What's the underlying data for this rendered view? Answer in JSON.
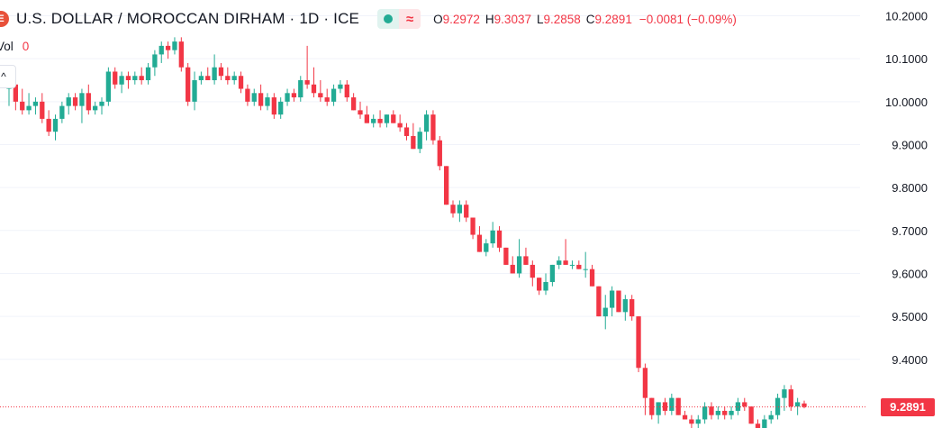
{
  "legend": {
    "symbol_icon": "E",
    "title": "U.S. DOLLAR / MOROCCAN DIRHAM · 1D · ICE",
    "market_status_icon": "market-open-dot-icon",
    "data_status_icon": "delayed-data-wave-icon",
    "data_status_glyph": "≈",
    "open_key": "O",
    "open_value": "9.2972",
    "high_key": "H",
    "high_value": "9.3037",
    "low_key": "L",
    "low_value": "9.2858",
    "close_key": "C",
    "close_value": "9.2891",
    "change_text": "−0.0081 (−0.09%)",
    "vol_label": "Vol",
    "vol_value": "0",
    "collapse_glyph": "^"
  },
  "colors": {
    "up": "#22ab94",
    "down": "#f23645",
    "text": "#131722",
    "grid": "#f0f3fa",
    "axis_text": "#131722"
  },
  "chart_data": {
    "type": "candlestick",
    "y_axis": {
      "min": 9.24,
      "max": 10.22,
      "ticks": [
        10.2,
        10.1,
        10.0,
        9.9,
        9.8,
        9.7,
        9.6,
        9.5,
        9.4
      ],
      "tick_labels": [
        "10.2000",
        "10.1000",
        "10.0000",
        "9.9000",
        "9.8000",
        "9.7000",
        "9.6000",
        "9.5000",
        "9.4000"
      ],
      "side": "right"
    },
    "current_price": 9.2891,
    "current_price_label": "9.2891",
    "candles": [
      [
        10.03,
        10.06,
        9.99,
        10.04
      ],
      [
        10.04,
        10.05,
        9.98,
        10.0
      ],
      [
        10.0,
        10.03,
        9.97,
        9.98
      ],
      [
        9.98,
        10.02,
        9.97,
        9.99
      ],
      [
        9.99,
        10.01,
        9.97,
        10.0
      ],
      [
        10.0,
        10.02,
        9.95,
        9.96
      ],
      [
        9.96,
        9.98,
        9.92,
        9.93
      ],
      [
        9.93,
        9.97,
        9.91,
        9.96
      ],
      [
        9.96,
        10.0,
        9.95,
        9.99
      ],
      [
        9.99,
        10.02,
        9.97,
        10.01
      ],
      [
        10.01,
        10.02,
        9.98,
        9.99
      ],
      [
        9.99,
        10.03,
        9.95,
        10.02
      ],
      [
        10.02,
        10.04,
        9.97,
        9.98
      ],
      [
        9.98,
        10.0,
        9.97,
        9.99
      ],
      [
        9.99,
        10.01,
        9.97,
        10.0
      ],
      [
        10.0,
        10.08,
        9.99,
        10.07
      ],
      [
        10.07,
        10.08,
        10.03,
        10.04
      ],
      [
        10.04,
        10.07,
        10.02,
        10.06
      ],
      [
        10.06,
        10.07,
        10.03,
        10.05
      ],
      [
        10.05,
        10.07,
        10.04,
        10.06
      ],
      [
        10.06,
        10.08,
        10.04,
        10.05
      ],
      [
        10.05,
        10.09,
        10.04,
        10.08
      ],
      [
        10.08,
        10.12,
        10.06,
        10.11
      ],
      [
        10.11,
        10.14,
        10.09,
        10.13
      ],
      [
        10.13,
        10.14,
        10.1,
        10.12
      ],
      [
        10.12,
        10.15,
        10.11,
        10.14
      ],
      [
        10.14,
        10.15,
        10.07,
        10.08
      ],
      [
        10.08,
        10.09,
        9.99,
        10.0
      ],
      [
        10.0,
        10.07,
        9.98,
        10.05
      ],
      [
        10.05,
        10.07,
        10.04,
        10.06
      ],
      [
        10.06,
        10.08,
        10.05,
        10.05
      ],
      [
        10.05,
        10.11,
        10.04,
        10.08
      ],
      [
        10.08,
        10.09,
        10.05,
        10.06
      ],
      [
        10.06,
        10.08,
        10.04,
        10.05
      ],
      [
        10.05,
        10.07,
        10.04,
        10.06
      ],
      [
        10.06,
        10.07,
        10.02,
        10.03
      ],
      [
        10.03,
        10.04,
        9.99,
        10.0
      ],
      [
        10.0,
        10.03,
        9.99,
        10.02
      ],
      [
        10.02,
        10.04,
        9.98,
        9.99
      ],
      [
        9.99,
        10.02,
        9.98,
        10.01
      ],
      [
        10.01,
        10.02,
        9.96,
        9.97
      ],
      [
        9.97,
        10.01,
        9.96,
        10.0
      ],
      [
        10.0,
        10.03,
        9.99,
        10.02
      ],
      [
        10.02,
        10.03,
        10.0,
        10.01
      ],
      [
        10.01,
        10.06,
        10.0,
        10.05
      ],
      [
        10.05,
        10.13,
        10.03,
        10.04
      ],
      [
        10.04,
        10.08,
        10.01,
        10.02
      ],
      [
        10.02,
        10.05,
        10.0,
        10.01
      ],
      [
        10.01,
        10.03,
        9.99,
        10.0
      ],
      [
        10.0,
        10.04,
        9.99,
        10.03
      ],
      [
        10.03,
        10.05,
        10.02,
        10.04
      ],
      [
        10.04,
        10.05,
        10.0,
        10.01
      ],
      [
        10.01,
        10.02,
        9.98,
        9.98
      ],
      [
        9.98,
        10.0,
        9.96,
        9.97
      ],
      [
        9.97,
        9.99,
        9.95,
        9.95
      ],
      [
        9.95,
        9.97,
        9.94,
        9.96
      ],
      [
        9.96,
        9.98,
        9.94,
        9.95
      ],
      [
        9.95,
        9.97,
        9.94,
        9.97
      ],
      [
        9.97,
        9.98,
        9.95,
        9.95
      ],
      [
        9.95,
        9.97,
        9.93,
        9.94
      ],
      [
        9.94,
        9.95,
        9.91,
        9.92
      ],
      [
        9.92,
        9.95,
        9.89,
        9.89
      ],
      [
        9.89,
        9.94,
        9.88,
        9.93
      ],
      [
        9.93,
        9.98,
        9.91,
        9.97
      ],
      [
        9.97,
        9.98,
        9.9,
        9.91
      ],
      [
        9.91,
        9.92,
        9.84,
        9.85
      ],
      [
        9.85,
        9.85,
        9.76,
        9.76
      ],
      [
        9.76,
        9.77,
        9.73,
        9.74
      ],
      [
        9.74,
        9.77,
        9.72,
        9.76
      ],
      [
        9.76,
        9.77,
        9.72,
        9.73
      ],
      [
        9.73,
        9.73,
        9.68,
        9.69
      ],
      [
        9.69,
        9.71,
        9.65,
        9.65
      ],
      [
        9.65,
        9.68,
        9.64,
        9.67
      ],
      [
        9.67,
        9.72,
        9.66,
        9.7
      ],
      [
        9.7,
        9.71,
        9.65,
        9.66
      ],
      [
        9.66,
        9.66,
        9.62,
        9.62
      ],
      [
        9.62,
        9.64,
        9.6,
        9.6
      ],
      [
        9.6,
        9.68,
        9.59,
        9.64
      ],
      [
        9.64,
        9.66,
        9.62,
        9.62
      ],
      [
        9.62,
        9.63,
        9.57,
        9.59
      ],
      [
        9.59,
        9.59,
        9.55,
        9.56
      ],
      [
        9.56,
        9.6,
        9.55,
        9.58
      ],
      [
        9.58,
        9.62,
        9.57,
        9.62
      ],
      [
        9.62,
        9.64,
        9.61,
        9.63
      ],
      [
        9.63,
        9.68,
        9.62,
        9.62
      ],
      [
        9.62,
        9.63,
        9.61,
        9.62
      ],
      [
        9.62,
        9.63,
        9.61,
        9.61
      ],
      [
        9.61,
        9.65,
        9.59,
        9.61
      ],
      [
        9.61,
        9.62,
        9.57,
        9.57
      ],
      [
        9.57,
        9.57,
        9.5,
        9.5
      ],
      [
        9.5,
        9.55,
        9.47,
        9.52
      ],
      [
        9.52,
        9.57,
        9.5,
        9.56
      ],
      [
        9.56,
        9.56,
        9.51,
        9.51
      ],
      [
        9.51,
        9.55,
        9.49,
        9.54
      ],
      [
        9.54,
        9.55,
        9.49,
        9.5
      ],
      [
        9.5,
        9.5,
        9.37,
        9.38
      ],
      [
        9.38,
        9.39,
        9.27,
        9.31
      ],
      [
        9.31,
        9.31,
        9.26,
        9.27
      ],
      [
        9.27,
        9.3,
        9.25,
        9.3
      ],
      [
        9.3,
        9.31,
        9.27,
        9.28
      ],
      [
        9.28,
        9.32,
        9.27,
        9.31
      ],
      [
        9.31,
        9.31,
        9.27,
        9.27
      ],
      [
        9.27,
        9.28,
        9.26,
        9.26
      ],
      [
        9.26,
        9.27,
        9.24,
        9.25
      ],
      [
        9.25,
        9.27,
        9.24,
        9.26
      ],
      [
        9.26,
        9.3,
        9.25,
        9.29
      ],
      [
        9.29,
        9.3,
        9.26,
        9.27
      ],
      [
        9.27,
        9.29,
        9.26,
        9.28
      ],
      [
        9.28,
        9.29,
        9.26,
        9.27
      ],
      [
        9.27,
        9.29,
        9.26,
        9.28
      ],
      [
        9.28,
        9.31,
        9.27,
        9.3
      ],
      [
        9.3,
        9.31,
        9.28,
        9.29
      ],
      [
        9.29,
        9.29,
        9.25,
        9.25
      ],
      [
        9.25,
        9.26,
        9.24,
        9.24
      ],
      [
        9.24,
        9.27,
        9.23,
        9.26
      ],
      [
        9.26,
        9.28,
        9.25,
        9.27
      ],
      [
        9.27,
        9.32,
        9.26,
        9.31
      ],
      [
        9.31,
        9.34,
        9.28,
        9.33
      ],
      [
        9.33,
        9.34,
        9.28,
        9.29
      ],
      [
        9.29,
        9.31,
        9.27,
        9.3
      ],
      [
        9.2972,
        9.3037,
        9.2858,
        9.2891
      ]
    ]
  }
}
